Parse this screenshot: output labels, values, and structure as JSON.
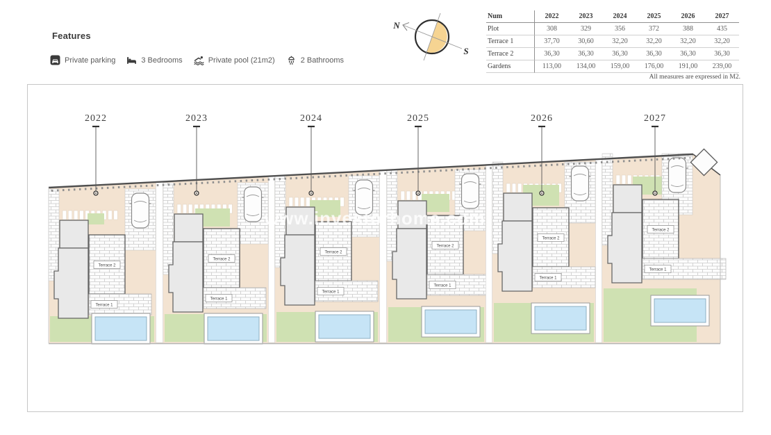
{
  "features": {
    "title": "Features",
    "items": [
      {
        "icon": "parking-icon",
        "label": "Private parking"
      },
      {
        "icon": "bed-icon",
        "label": "3 Bedrooms"
      },
      {
        "icon": "pool-icon",
        "label": "Private pool (21m2)"
      },
      {
        "icon": "bath-icon",
        "label": "2 Bathrooms"
      }
    ]
  },
  "compass": {
    "north_label": "N",
    "south_label": "S"
  },
  "table": {
    "header": [
      "Num",
      "2022",
      "2023",
      "2024",
      "2025",
      "2026",
      "2027"
    ],
    "rows": [
      [
        "Plot",
        "308",
        "329",
        "356",
        "372",
        "388",
        "435"
      ],
      [
        "Terrace 1",
        "37,70",
        "30,60",
        "32,20",
        "32,20",
        "32,20",
        "32,20"
      ],
      [
        "Terrace 2",
        "36,30",
        "36,30",
        "36,30",
        "36,30",
        "36,30",
        "36,30"
      ],
      [
        "Gardens",
        "113,00",
        "134,00",
        "159,00",
        "176,00",
        "191,00",
        "239,00"
      ]
    ],
    "note": "All measures are expressed in M2."
  },
  "plan": {
    "watermark": "www.investorhome.com",
    "plots": [
      {
        "num": "2022",
        "terrace1_label": "Terrace 1",
        "terrace2_label": "Terrace 2"
      },
      {
        "num": "2023",
        "terrace1_label": "Terrace 1",
        "terrace2_label": "Terrace 2"
      },
      {
        "num": "2024",
        "terrace1_label": "Terrace 1",
        "terrace2_label": "Terrace 2"
      },
      {
        "num": "2025",
        "terrace1_label": "Terrace 1",
        "terrace2_label": "Terrace 2"
      },
      {
        "num": "2026",
        "terrace1_label": "Terrace 1",
        "terrace2_label": "Terrace 2"
      },
      {
        "num": "2027",
        "terrace1_label": "Terrace 1",
        "terrace2_label": "Terrace 2"
      }
    ]
  },
  "colors": {
    "peach": "#f3e3d1",
    "garden_green": "#cfe1b2",
    "pool_blue": "#c6e4f6",
    "compass_orange": "#f6d492",
    "house_gray": "#e9e9e9",
    "wall_dark": "#4f4f4f",
    "text_dark": "#3d3d3d"
  }
}
